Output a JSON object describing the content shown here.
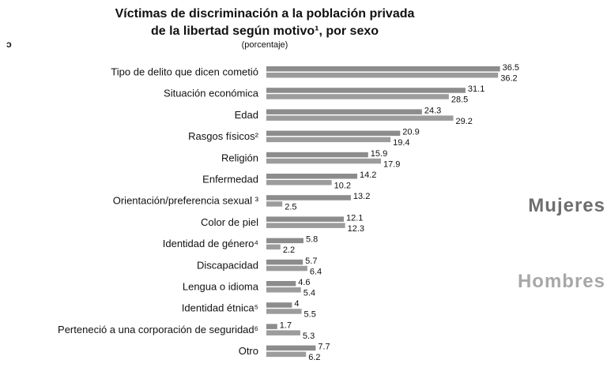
{
  "chart_data": {
    "type": "bar",
    "orientation": "horizontal",
    "title_line1": "Víctimas de discriminación a la población privada",
    "title_line2": "de la libertad según motivo¹, por sexo",
    "subtitle": "(porcentaje)",
    "side_label": "ɔ",
    "categories": [
      "Tipo de delito que dicen cometió",
      "Situación económica",
      "Edad",
      "Rasgos físicos²",
      "Religión",
      "Enfermedad",
      "Orientación/preferencia sexual ³",
      "Color de piel",
      "Identidad de género⁴",
      "Discapacidad",
      "Lengua o idioma",
      "Identidad étnica⁵",
      "Perteneció a una corporación de seguridad⁶",
      "Otro"
    ],
    "series": [
      {
        "name": "Mujeres",
        "values": [
          36.5,
          31.1,
          24.3,
          20.9,
          15.9,
          14.2,
          13.2,
          12.1,
          5.8,
          5.7,
          4.6,
          4,
          1.7,
          7.7
        ],
        "labels": [
          "36.5",
          "31.1",
          "24.3",
          "20.9",
          "15.9",
          "14.2",
          "13.2",
          "12.1",
          "5.8",
          "5.7",
          "4.6",
          "4",
          "1.7",
          "7.7"
        ]
      },
      {
        "name": "Hombres",
        "values": [
          36.2,
          28.5,
          29.2,
          19.4,
          17.9,
          10.2,
          2.5,
          12.3,
          2.2,
          6.4,
          5.4,
          5.5,
          5.3,
          6.2
        ],
        "labels": [
          "36.2",
          "28.5",
          "29.2",
          "19.4",
          "17.9",
          "10.2",
          "2.5",
          "12.3",
          "2.2",
          "6.4",
          "5.4",
          "5.5",
          "5.3",
          "6.2"
        ]
      }
    ],
    "colors": {
      "mujeres_bar": "#8c8c8c",
      "hombres_bar": "#9c9c9c",
      "mujeres_legend": "#6e6e6e",
      "hombres_legend": "#a8a8a8"
    },
    "xlim": [
      0,
      40
    ],
    "legend_placement": "right"
  }
}
